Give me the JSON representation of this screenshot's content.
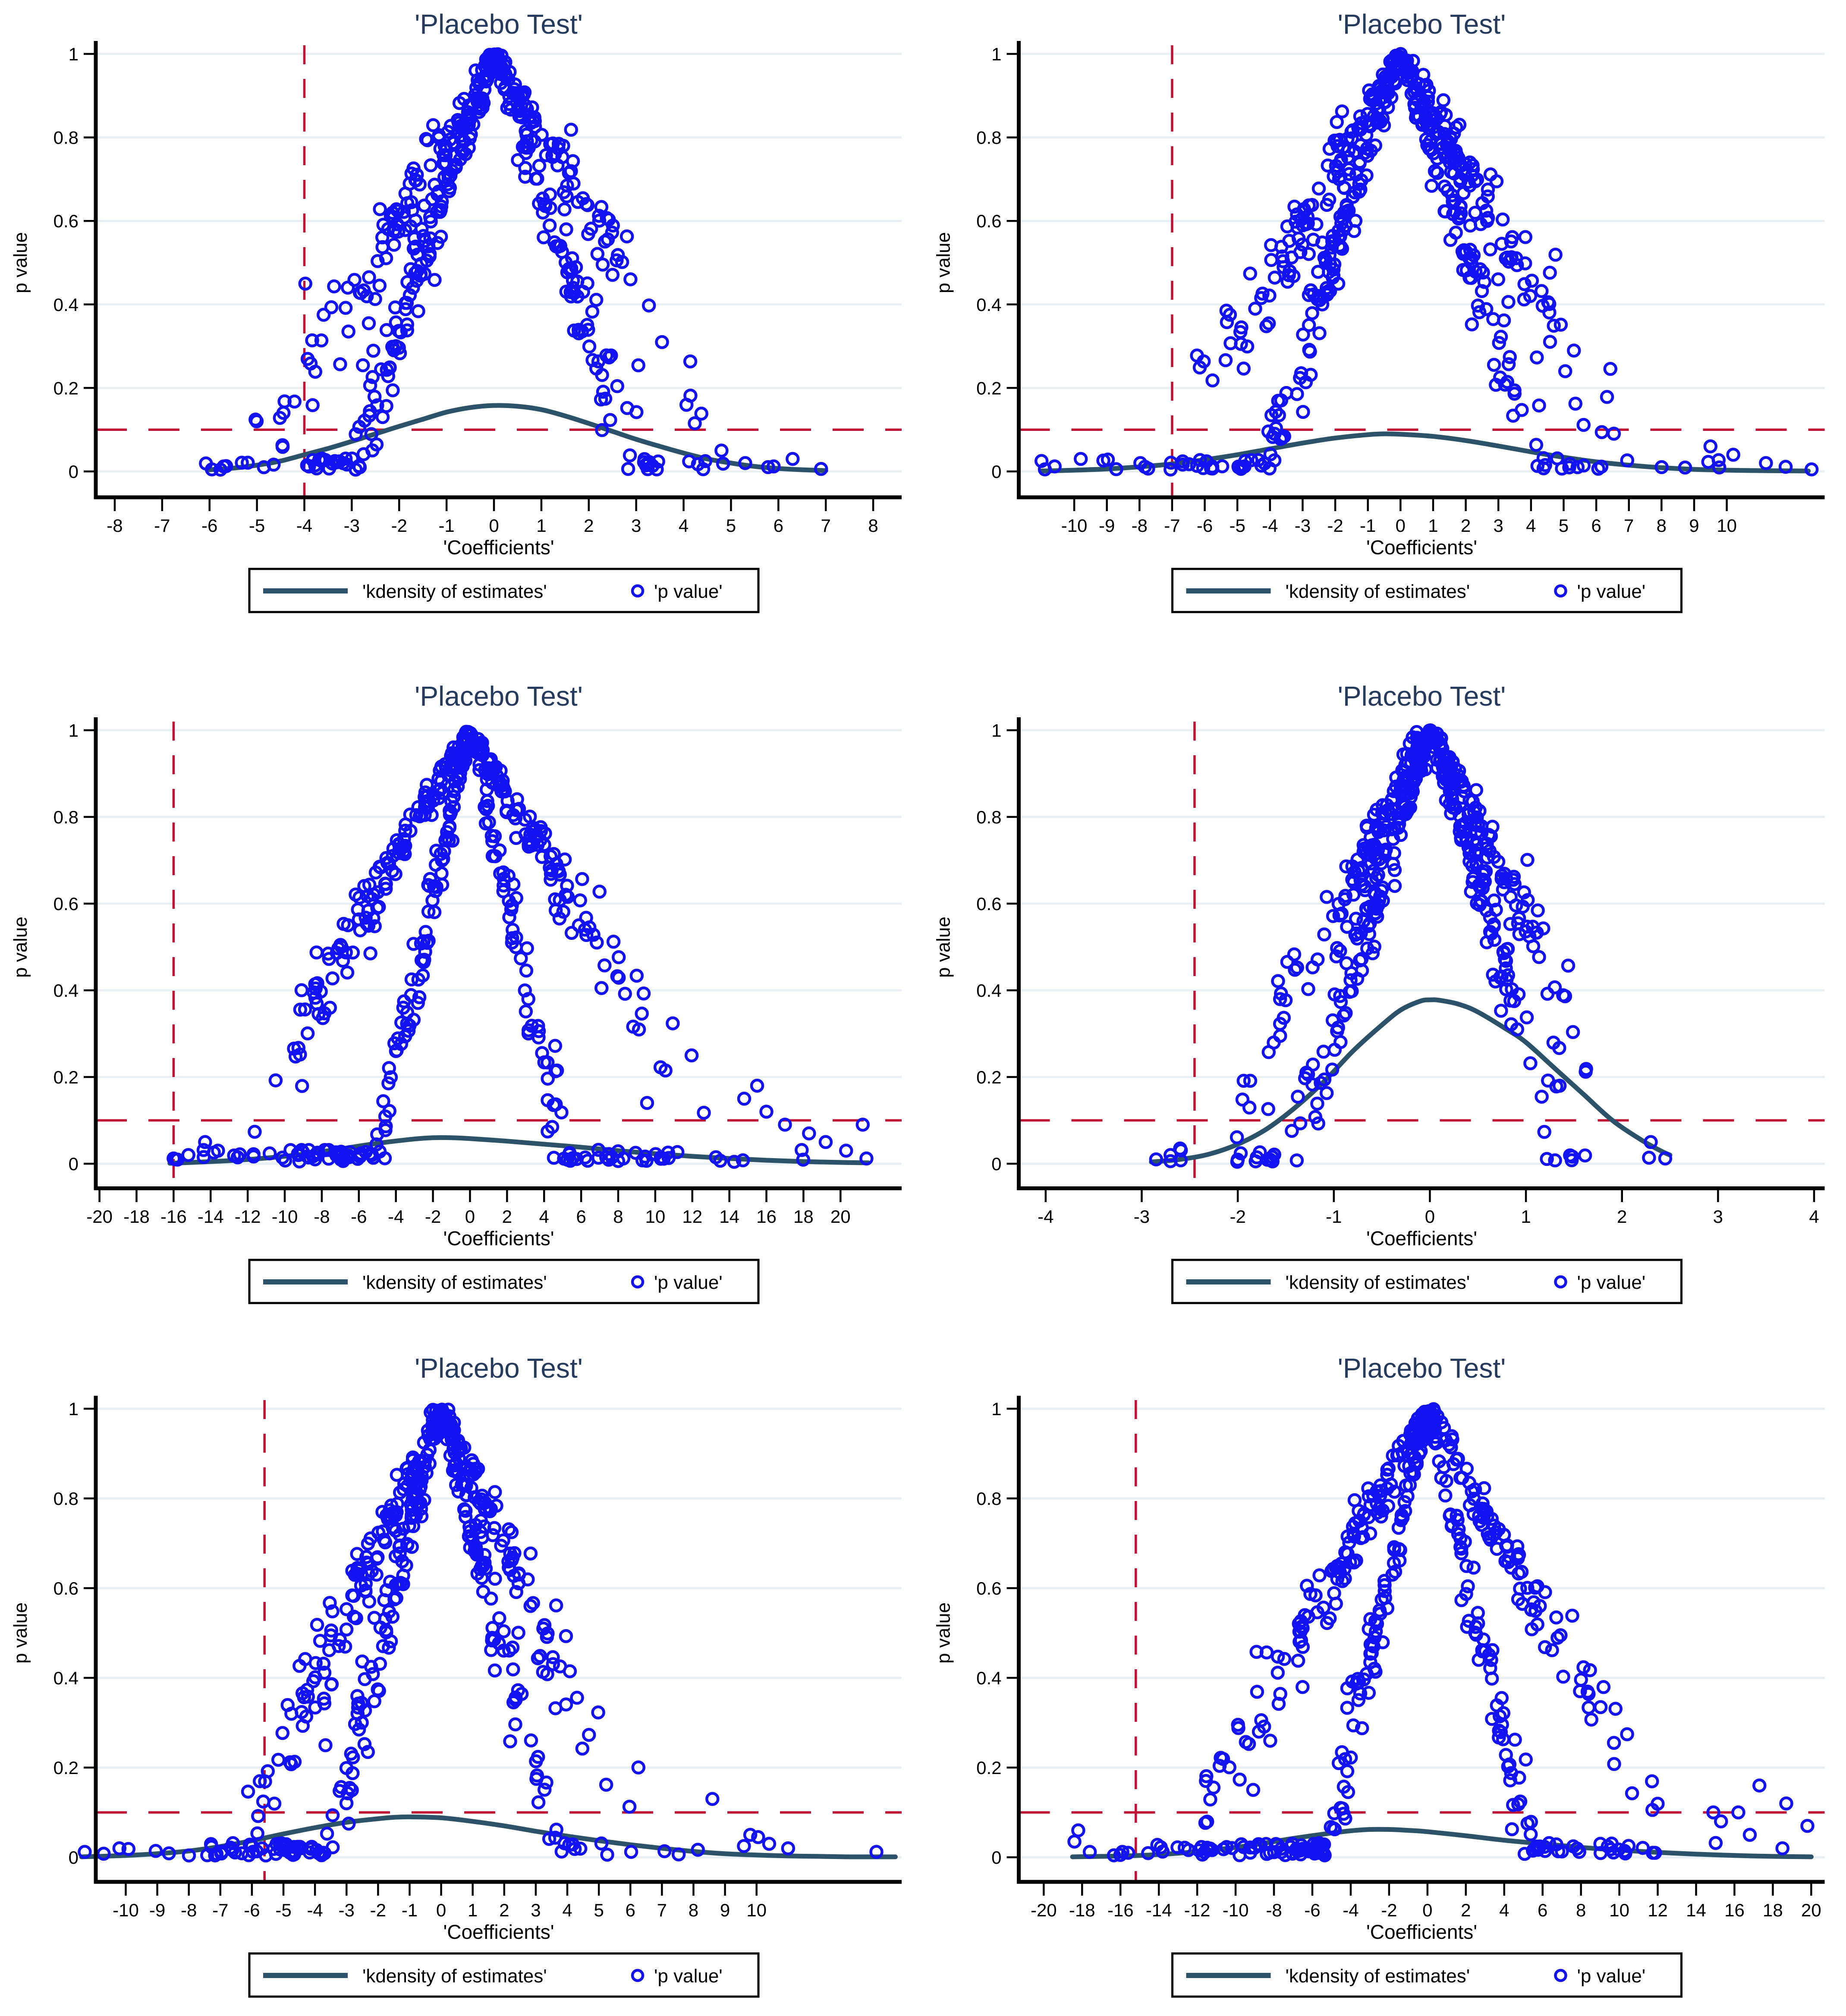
{
  "page": {
    "background": "#ffffff"
  },
  "styles": {
    "marker_color": "#1212f2",
    "kdensity_color": "#2b5268",
    "ref_line_color": "#c11236",
    "grid_color": "#e7eff2",
    "title_color": "#253a5d",
    "axis_color": "#000000"
  },
  "chart_data": [
    {
      "type": "scatter",
      "title": "'Placebo Test'",
      "xlabel": "'Coefficients'",
      "ylabel": "p value",
      "xlim": [
        -8.4,
        8.6
      ],
      "ylim": [
        0,
        1
      ],
      "xticks": [
        -8,
        -7,
        -6,
        -5,
        -4,
        -3,
        -2,
        -1,
        0,
        1,
        2,
        3,
        4,
        5,
        6,
        7,
        8
      ],
      "yticks": [
        0,
        0.2,
        0.4,
        0.6,
        0.8,
        1
      ],
      "ytick_labels": [
        "0",
        "0.2",
        "0.4",
        "0.6",
        "0.8",
        "1"
      ],
      "grid": "horizontal",
      "href_line": 0.1,
      "vref_line": -4,
      "legend": {
        "line_label": "'kdensity of estimates'",
        "marker_label": "'p value'",
        "position": "bottom-center"
      },
      "kdensity": [
        [
          -6,
          0.004
        ],
        [
          -5.5,
          0.008
        ],
        [
          -5,
          0.015
        ],
        [
          -4.5,
          0.025
        ],
        [
          -4,
          0.04
        ],
        [
          -3.5,
          0.055
        ],
        [
          -3,
          0.072
        ],
        [
          -2.5,
          0.09
        ],
        [
          -2,
          0.108
        ],
        [
          -1.5,
          0.125
        ],
        [
          -1,
          0.142
        ],
        [
          -0.5,
          0.153
        ],
        [
          0,
          0.158
        ],
        [
          0.5,
          0.156
        ],
        [
          1,
          0.148
        ],
        [
          1.5,
          0.133
        ],
        [
          2,
          0.115
        ],
        [
          2.5,
          0.096
        ],
        [
          3,
          0.077
        ],
        [
          3.5,
          0.06
        ],
        [
          4,
          0.044
        ],
        [
          4.5,
          0.03
        ],
        [
          5,
          0.02
        ],
        [
          5.5,
          0.012
        ],
        [
          6,
          0.007
        ],
        [
          6.5,
          0.004
        ],
        [
          7,
          0.002
        ]
      ],
      "scatter_gen": {
        "seed": 101,
        "n": 470,
        "mu": -0.3,
        "sd": 2.05,
        "clip": [
          -6.1,
          7.0
        ],
        "widths": [
          3.1,
          5.2
        ],
        "frac_w1": 0.55,
        "stretch": [
          0.12,
          1.35
        ],
        "noise": 0.045,
        "peak_points": 8
      },
      "scatter_extras": [
        [
          5.3,
          0.02
        ],
        [
          5.9,
          0.012
        ],
        [
          6.3,
          0.03
        ],
        [
          6.9,
          0.006
        ],
        [
          -5.7,
          0.012
        ],
        [
          -5.95,
          0.005
        ],
        [
          4.8,
          0.05
        ]
      ]
    },
    {
      "type": "scatter",
      "title": "'Placebo Test'",
      "xlabel": "'Coefficients'",
      "ylabel": "p value",
      "xlim": [
        -11.7,
        13.0
      ],
      "ylim": [
        0,
        1
      ],
      "xticks": [
        -10,
        -9,
        -8,
        -7,
        -6,
        -5,
        -4,
        -3,
        -2,
        -1,
        0,
        1,
        2,
        3,
        4,
        5,
        6,
        7,
        8,
        9,
        10
      ],
      "yticks": [
        0,
        0.2,
        0.4,
        0.6,
        0.8,
        1
      ],
      "ytick_labels": [
        "0",
        "0.2",
        "0.4",
        "0.6",
        "0.8",
        "1"
      ],
      "grid": "horizontal",
      "href_line": 0.1,
      "vref_line": -7,
      "legend": {
        "line_label": "'kdensity of estimates'",
        "marker_label": "'p value'",
        "position": "bottom-center"
      },
      "kdensity": [
        [
          -11,
          0.001
        ],
        [
          -10,
          0.003
        ],
        [
          -9,
          0.006
        ],
        [
          -8,
          0.011
        ],
        [
          -7,
          0.018
        ],
        [
          -6,
          0.028
        ],
        [
          -5,
          0.04
        ],
        [
          -4,
          0.054
        ],
        [
          -3,
          0.068
        ],
        [
          -2,
          0.08
        ],
        [
          -1,
          0.088
        ],
        [
          -0.5,
          0.09
        ],
        [
          0,
          0.089
        ],
        [
          1,
          0.084
        ],
        [
          2,
          0.074
        ],
        [
          3,
          0.061
        ],
        [
          4,
          0.047
        ],
        [
          5,
          0.034
        ],
        [
          6,
          0.023
        ],
        [
          7,
          0.015
        ],
        [
          8,
          0.009
        ],
        [
          9,
          0.005
        ],
        [
          10,
          0.003
        ],
        [
          11,
          0.002
        ],
        [
          12.5,
          0.001
        ]
      ],
      "scatter_gen": {
        "seed": 202,
        "n": 520,
        "mu": -0.3,
        "sd": 3.0,
        "clip": [
          -11.2,
          12.0
        ],
        "widths": [
          4.3,
          7.4
        ],
        "frac_w1": 0.5,
        "stretch": [
          0.08,
          1.3
        ],
        "noise": 0.045,
        "peak_points": 8
      },
      "scatter_extras": [
        [
          12.6,
          0.005
        ],
        [
          11.2,
          0.02
        ],
        [
          -10.6,
          0.012
        ],
        [
          -10.9,
          0.005
        ],
        [
          9.5,
          0.06
        ],
        [
          10.2,
          0.04
        ],
        [
          -9.8,
          0.03
        ]
      ]
    },
    {
      "type": "scatter",
      "title": "'Placebo Test'",
      "xlabel": "'Coefficients'",
      "ylabel": "p value",
      "xlim": [
        -20.2,
        23.3
      ],
      "ylim": [
        0,
        1
      ],
      "xticks": [
        -20,
        -18,
        -16,
        -14,
        -12,
        -10,
        -8,
        -6,
        -4,
        -2,
        0,
        2,
        4,
        6,
        8,
        10,
        12,
        14,
        16,
        18,
        20
      ],
      "yticks": [
        0,
        0.2,
        0.4,
        0.6,
        0.8,
        1
      ],
      "ytick_labels": [
        "0",
        "0.2",
        "0.4",
        "0.6",
        "0.8",
        "1"
      ],
      "grid": "horizontal",
      "href_line": 0.1,
      "vref_line": -16,
      "legend": {
        "line_label": "'kdensity of estimates'",
        "marker_label": "'p value'",
        "position": "bottom-center"
      },
      "kdensity": [
        [
          -16.2,
          0.001
        ],
        [
          -15,
          0.003
        ],
        [
          -13,
          0.007
        ],
        [
          -11,
          0.013
        ],
        [
          -9,
          0.022
        ],
        [
          -7,
          0.034
        ],
        [
          -5,
          0.047
        ],
        [
          -3,
          0.057
        ],
        [
          -2,
          0.06
        ],
        [
          -1,
          0.06
        ],
        [
          0,
          0.058
        ],
        [
          2,
          0.052
        ],
        [
          4,
          0.045
        ],
        [
          6,
          0.038
        ],
        [
          8,
          0.03
        ],
        [
          10,
          0.023
        ],
        [
          12,
          0.017
        ],
        [
          14,
          0.012
        ],
        [
          16,
          0.008
        ],
        [
          18,
          0.005
        ],
        [
          20,
          0.003
        ],
        [
          21.5,
          0.002
        ]
      ],
      "scatter_gen": {
        "seed": 303,
        "n": 500,
        "mu": -0.8,
        "sd": 5.0,
        "clip": [
          -16.2,
          21.5
        ],
        "widths": [
          5.2,
          13.5
        ],
        "frac_w1": 0.5,
        "stretch": [
          0.3,
          1.55
        ],
        "noise": 0.04,
        "peak_points": 8
      },
      "scatter_extras": [
        [
          16,
          0.12
        ],
        [
          17,
          0.09
        ],
        [
          18.3,
          0.07
        ],
        [
          19.2,
          0.05
        ],
        [
          20.3,
          0.03
        ],
        [
          21.4,
          0.012
        ],
        [
          14.8,
          0.15
        ],
        [
          15.5,
          0.18
        ],
        [
          21.2,
          0.09
        ],
        [
          -16,
          0.012
        ],
        [
          -15.2,
          0.02
        ],
        [
          -14.3,
          0.05
        ],
        [
          -13.6,
          0.03
        ]
      ]
    },
    {
      "type": "scatter",
      "title": "'Placebo Test'",
      "xlabel": "'Coefficients'",
      "ylabel": "p value",
      "xlim": [
        -4.28,
        4.11
      ],
      "ylim": [
        0,
        1
      ],
      "xticks": [
        -4,
        -3,
        -2,
        -1,
        0,
        1,
        2,
        3,
        4
      ],
      "yticks": [
        0,
        0.2,
        0.4,
        0.6,
        0.8,
        1
      ],
      "ytick_labels": [
        "0",
        "0.2",
        "0.4",
        "0.6",
        "0.8",
        "1"
      ],
      "grid": "horizontal",
      "href_line": 0.1,
      "vref_line": -2.45,
      "legend": {
        "line_label": "'kdensity of estimates'",
        "marker_label": "'p value'",
        "position": "bottom-center"
      },
      "kdensity": [
        [
          -2.9,
          0.004
        ],
        [
          -2.6,
          0.01
        ],
        [
          -2.3,
          0.022
        ],
        [
          -2,
          0.045
        ],
        [
          -1.7,
          0.08
        ],
        [
          -1.4,
          0.13
        ],
        [
          -1.1,
          0.19
        ],
        [
          -0.8,
          0.26
        ],
        [
          -0.5,
          0.32
        ],
        [
          -0.3,
          0.355
        ],
        [
          -0.1,
          0.375
        ],
        [
          0,
          0.378
        ],
        [
          0.1,
          0.377
        ],
        [
          0.3,
          0.368
        ],
        [
          0.5,
          0.35
        ],
        [
          0.8,
          0.31
        ],
        [
          1,
          0.28
        ],
        [
          1.3,
          0.22
        ],
        [
          1.6,
          0.16
        ],
        [
          1.9,
          0.1
        ],
        [
          2.2,
          0.055
        ],
        [
          2.4,
          0.03
        ],
        [
          2.5,
          0.02
        ]
      ],
      "scatter_gen": {
        "seed": 404,
        "n": 500,
        "mu": -0.15,
        "sd": 0.82,
        "clip": [
          -2.88,
          2.5
        ],
        "widths": [
          1.45,
          2.35
        ],
        "frac_w1": 0.5,
        "stretch": [
          0,
          1
        ],
        "noise": 0.045,
        "peak_points": 8
      },
      "scatter_extras": [
        [
          2.45,
          0.012
        ],
        [
          -2.85,
          0.01
        ],
        [
          -2.7,
          0.02
        ],
        [
          2.3,
          0.05
        ],
        [
          -2.6,
          0.035
        ]
      ]
    },
    {
      "type": "scatter",
      "title": "'Placebo Test'",
      "xlabel": "'Coefficients'",
      "ylabel": "p value",
      "xlim": [
        -10.95,
        14.6
      ],
      "ylim": [
        0,
        1
      ],
      "xticks": [
        -10,
        -9,
        -8,
        -7,
        -6,
        -5,
        -4,
        -3,
        -2,
        -1,
        0,
        1,
        2,
        3,
        4,
        5,
        6,
        7,
        8,
        9,
        10
      ],
      "yticks": [
        0,
        0.2,
        0.4,
        0.6,
        0.8,
        1
      ],
      "ytick_labels": [
        "0",
        "0.2",
        "0.4",
        "0.6",
        "0.8",
        "1"
      ],
      "grid": "horizontal",
      "href_line": 0.1,
      "vref_line": -5.6,
      "legend": {
        "line_label": "'kdensity of estimates'",
        "marker_label": "'p value'",
        "position": "bottom-center"
      },
      "kdensity": [
        [
          -11.4,
          0.001
        ],
        [
          -10,
          0.004
        ],
        [
          -9,
          0.008
        ],
        [
          -8,
          0.014
        ],
        [
          -7,
          0.024
        ],
        [
          -6,
          0.037
        ],
        [
          -5,
          0.052
        ],
        [
          -4,
          0.066
        ],
        [
          -3,
          0.078
        ],
        [
          -2,
          0.086
        ],
        [
          -1.5,
          0.089
        ],
        [
          -1,
          0.09
        ],
        [
          0,
          0.088
        ],
        [
          1,
          0.08
        ],
        [
          2,
          0.07
        ],
        [
          3,
          0.058
        ],
        [
          4,
          0.047
        ],
        [
          5,
          0.037
        ],
        [
          6,
          0.028
        ],
        [
          7,
          0.02
        ],
        [
          8,
          0.013
        ],
        [
          9,
          0.008
        ],
        [
          10,
          0.005
        ],
        [
          11,
          0.003
        ],
        [
          12,
          0.002
        ],
        [
          13,
          0.001
        ],
        [
          14.4,
          0.001
        ]
      ],
      "scatter_gen": {
        "seed": 505,
        "n": 490,
        "mu": -0.9,
        "sd": 2.9,
        "clip": [
          -11.4,
          10.8
        ],
        "widths": [
          3.7,
          6.6
        ],
        "frac_w1": 0.55,
        "stretch": [
          0.18,
          1.4
        ],
        "noise": 0.045,
        "peak_points": 8
      },
      "scatter_extras": [
        [
          13.8,
          0.012
        ],
        [
          10.4,
          0.03
        ],
        [
          9.8,
          0.05
        ],
        [
          9.6,
          0.025
        ],
        [
          10.05,
          0.045
        ],
        [
          -11.3,
          0.012
        ],
        [
          8.6,
          0.13
        ],
        [
          11.0,
          0.02
        ],
        [
          -10.7,
          0.008
        ],
        [
          -10.2,
          0.02
        ]
      ]
    },
    {
      "type": "scatter",
      "title": "'Placebo Test'",
      "xlabel": "'Coefficients'",
      "ylabel": "p value",
      "xlim": [
        -21.3,
        20.7
      ],
      "ylim": [
        0,
        1
      ],
      "xticks": [
        -20,
        -18,
        -16,
        -14,
        -12,
        -10,
        -8,
        -6,
        -4,
        -2,
        0,
        2,
        4,
        6,
        8,
        10,
        12,
        14,
        16,
        18,
        20
      ],
      "yticks": [
        0,
        0.2,
        0.4,
        0.6,
        0.8,
        1
      ],
      "ytick_labels": [
        "0",
        "0.2",
        "0.4",
        "0.6",
        "0.8",
        "1"
      ],
      "grid": "horizontal",
      "href_line": 0.1,
      "vref_line": -15.2,
      "legend": {
        "line_label": "'kdensity of estimates'",
        "marker_label": "'p value'",
        "position": "bottom-center"
      },
      "kdensity": [
        [
          -18.5,
          0.001
        ],
        [
          -17,
          0.002
        ],
        [
          -15,
          0.004
        ],
        [
          -13,
          0.009
        ],
        [
          -11,
          0.017
        ],
        [
          -9,
          0.028
        ],
        [
          -7,
          0.042
        ],
        [
          -5,
          0.054
        ],
        [
          -4,
          0.059
        ],
        [
          -3,
          0.062
        ],
        [
          -2,
          0.062
        ],
        [
          -1,
          0.06
        ],
        [
          0,
          0.057
        ],
        [
          2,
          0.048
        ],
        [
          4,
          0.038
        ],
        [
          6,
          0.03
        ],
        [
          8,
          0.022
        ],
        [
          10,
          0.016
        ],
        [
          12,
          0.011
        ],
        [
          14,
          0.007
        ],
        [
          16,
          0.004
        ],
        [
          18,
          0.002
        ],
        [
          20,
          0.001
        ]
      ],
      "scatter_gen": {
        "seed": 606,
        "n": 500,
        "mu": -1.2,
        "sd": 5.2,
        "clip": [
          -18.4,
          20.0
        ],
        "widths": [
          5.4,
          13.0
        ],
        "frac_w1": 0.5,
        "stretch": [
          0.15,
          1.45
        ],
        "noise": 0.04,
        "peak_points": 8
      },
      "scatter_extras": [
        [
          19.8,
          0.07
        ],
        [
          18.7,
          0.12
        ],
        [
          17.3,
          0.16
        ],
        [
          16.2,
          0.1
        ],
        [
          15.3,
          0.08
        ],
        [
          -18.4,
          0.035
        ],
        [
          -18.2,
          0.06
        ],
        [
          -17.6,
          0.012
        ],
        [
          -15.9,
          0.012
        ],
        [
          -15.6,
          0.01
        ],
        [
          14.9,
          0.1
        ],
        [
          16.8,
          0.05
        ]
      ]
    }
  ]
}
